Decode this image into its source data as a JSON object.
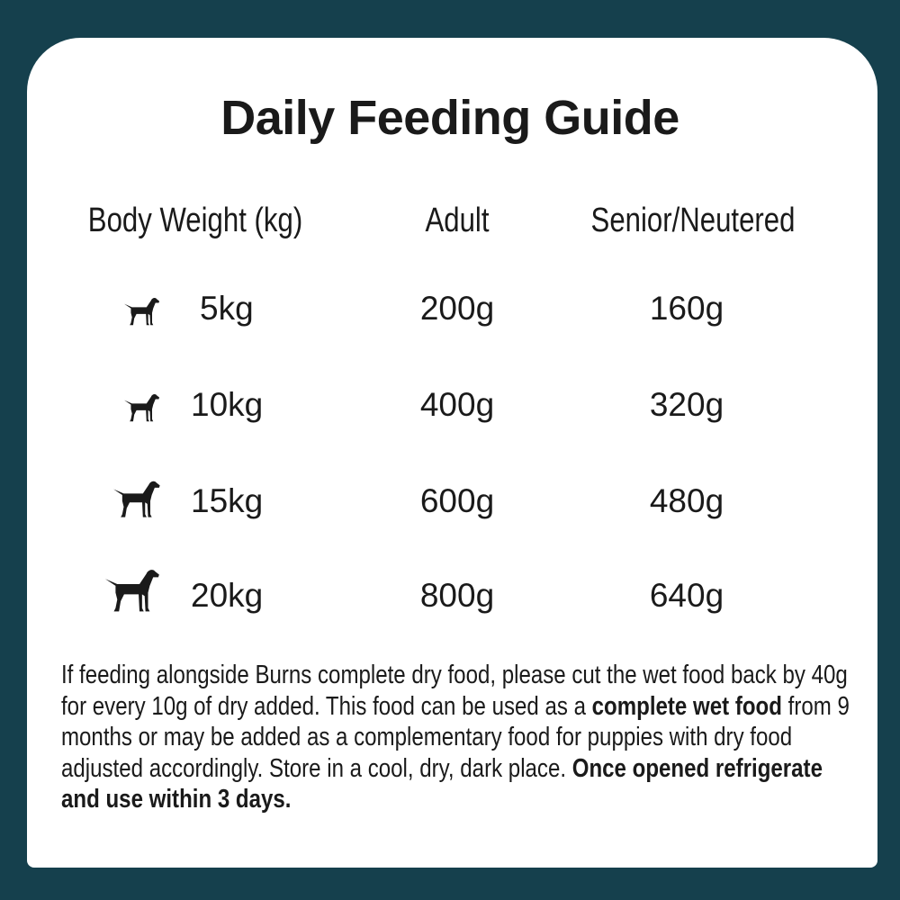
{
  "title": "Daily Feeding Guide",
  "headers": [
    "Body Weight (kg)",
    "Adult",
    "Senior/Neutered"
  ],
  "rows": [
    {
      "icon": "dog-icon",
      "weight": "5kg",
      "adult": "200g",
      "senior": "160g"
    },
    {
      "icon": "dog-icon",
      "weight": "10kg",
      "adult": "400g",
      "senior": "320g"
    },
    {
      "icon": "dog-icon",
      "weight": "15kg",
      "adult": "600g",
      "senior": "480g"
    },
    {
      "icon": "dog-icon",
      "weight": "20kg",
      "adult": "800g",
      "senior": "640g"
    }
  ],
  "note": {
    "part1": "If feeding alongside Burns complete dry food, please cut the wet food back by 40g for every 10g of dry added. This food can be used as a ",
    "bold1": "complete wet food",
    "part2": " from 9 months or may be added as a complementary food for puppies with dry food adjusted accordingly. Store in a cool, dry, dark place. ",
    "bold2": "Once opened refrigerate and use within 3 days."
  },
  "colors": {
    "background": "#15404d",
    "card": "#ffffff",
    "text": "#1a1a1a"
  }
}
